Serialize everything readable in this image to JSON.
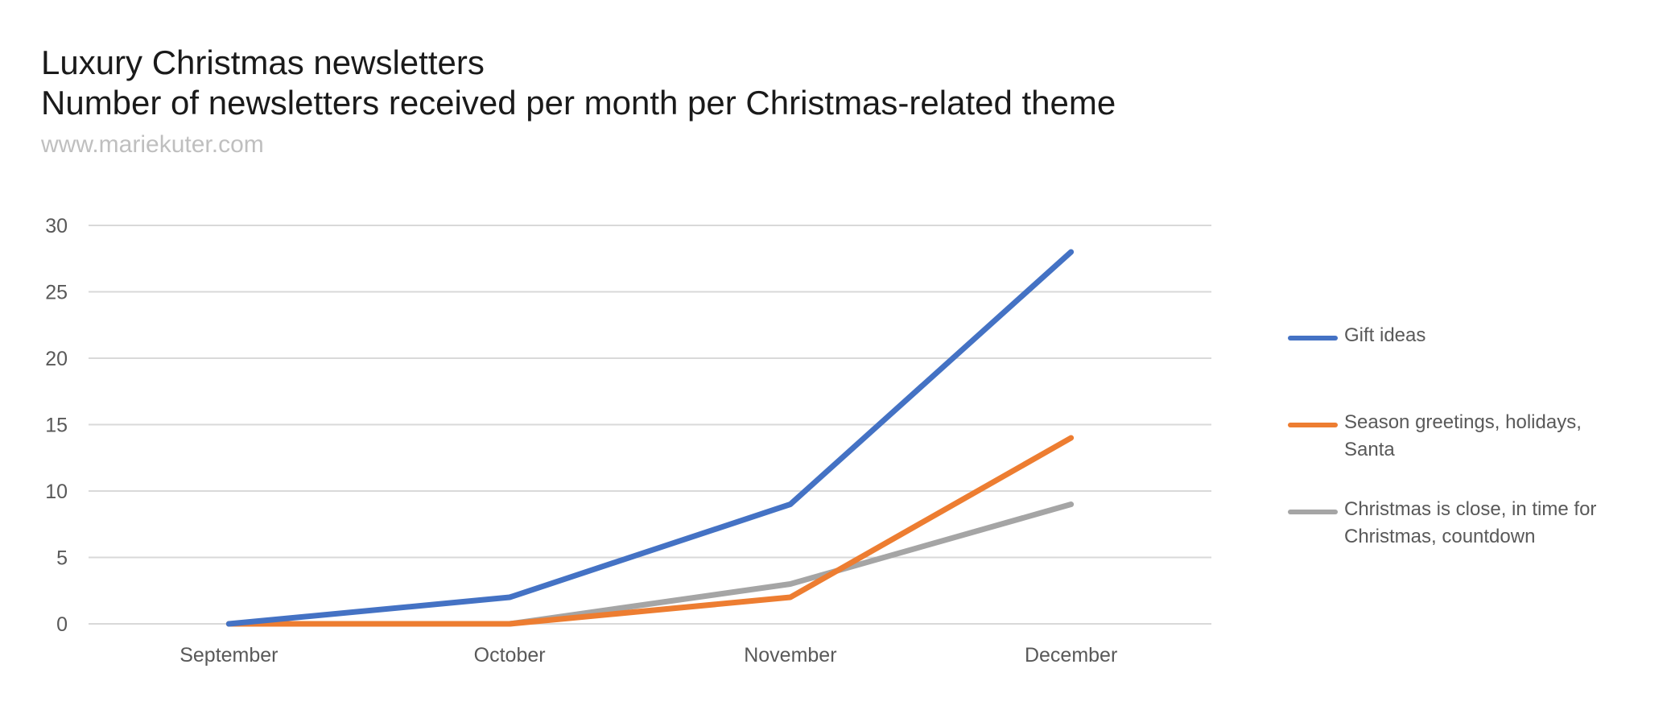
{
  "chart_data": {
    "type": "line",
    "title": "Luxury Christmas newsletters",
    "subtitle": "Number of newsletters received per month per Christmas-related theme",
    "source": "www.mariekuter.com",
    "xlabel": "",
    "ylabel": "",
    "categories": [
      "September",
      "October",
      "November",
      "December"
    ],
    "ylim": [
      0,
      30
    ],
    "yticks": [
      0,
      5,
      10,
      15,
      20,
      25,
      30
    ],
    "grid": true,
    "legend_position": "right",
    "series": [
      {
        "name": "Gift ideas",
        "color": "#4472C4",
        "values": [
          0,
          2,
          9,
          28
        ]
      },
      {
        "name": "Season greetings, holidays, Santa",
        "color": "#ED7D31",
        "values": [
          0,
          0,
          2,
          14
        ]
      },
      {
        "name": "Christmas is close, in time for Christmas, countdown",
        "color": "#A5A5A5",
        "values": [
          0,
          0,
          3,
          9
        ]
      }
    ]
  }
}
